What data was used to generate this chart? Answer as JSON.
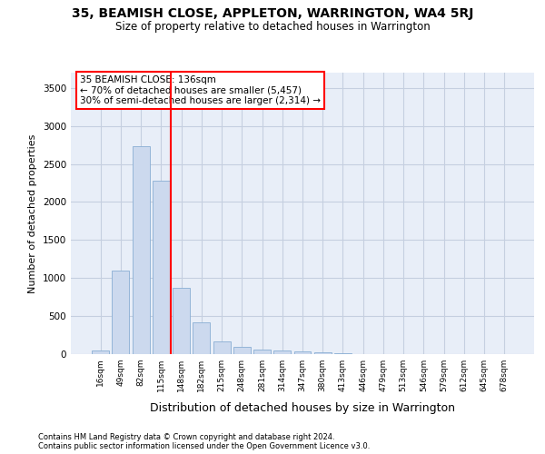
{
  "title": "35, BEAMISH CLOSE, APPLETON, WARRINGTON, WA4 5RJ",
  "subtitle": "Size of property relative to detached houses in Warrington",
  "xlabel": "Distribution of detached houses by size in Warrington",
  "ylabel": "Number of detached properties",
  "footnote1": "Contains HM Land Registry data © Crown copyright and database right 2024.",
  "footnote2": "Contains public sector information licensed under the Open Government Licence v3.0.",
  "categories": [
    "16sqm",
    "49sqm",
    "82sqm",
    "115sqm",
    "148sqm",
    "182sqm",
    "215sqm",
    "248sqm",
    "281sqm",
    "314sqm",
    "347sqm",
    "380sqm",
    "413sqm",
    "446sqm",
    "479sqm",
    "513sqm",
    "546sqm",
    "579sqm",
    "612sqm",
    "645sqm",
    "678sqm"
  ],
  "values": [
    50,
    1100,
    2730,
    2280,
    870,
    415,
    170,
    90,
    60,
    50,
    30,
    20,
    10,
    5,
    5,
    0,
    0,
    0,
    0,
    0,
    0
  ],
  "bar_color": "#ccd9ee",
  "bar_edgecolor": "#89aed4",
  "grid_color": "#c5cfe0",
  "bg_color": "#e8eef8",
  "red_line_x": 3.5,
  "annotation_line1": "35 BEAMISH CLOSE: 136sqm",
  "annotation_line2": "← 70% of detached houses are smaller (5,457)",
  "annotation_line3": "30% of semi-detached houses are larger (2,314) →",
  "ylim": [
    0,
    3700
  ],
  "yticks": [
    0,
    500,
    1000,
    1500,
    2000,
    2500,
    3000,
    3500
  ]
}
